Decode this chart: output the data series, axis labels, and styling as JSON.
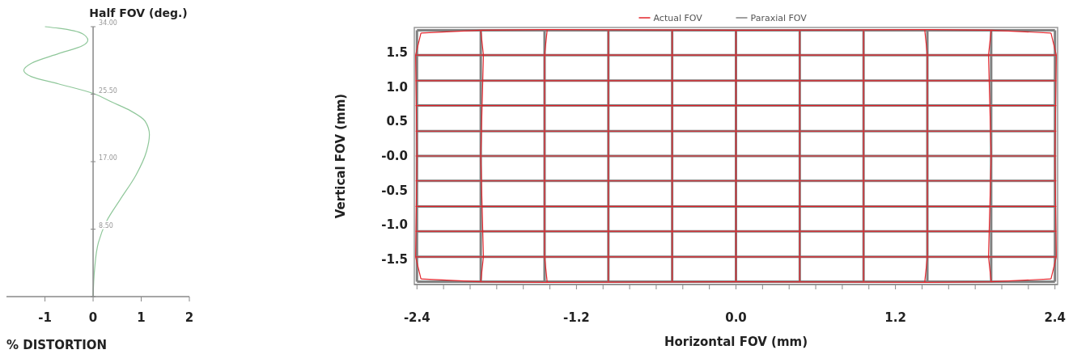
{
  "chart_data": [
    {
      "type": "line",
      "ylabel": "Half FOV (deg.)",
      "xlabel": "% DISTORTION",
      "xlim": [
        -1.8,
        2
      ],
      "ylim": [
        0,
        34
      ],
      "xticks": [
        -1,
        0,
        1,
        2
      ],
      "yticks": [
        {
          "value": 0,
          "label": null
        },
        {
          "value": 8.5,
          "label": "8.50"
        },
        {
          "value": 17,
          "label": "17.00"
        },
        {
          "value": 25.5,
          "label": "25.50"
        },
        {
          "value": 34,
          "label": "34.00"
        }
      ],
      "series": [
        {
          "color": "#8fc79a",
          "x": [
            0,
            0.03,
            0.11,
            0.28,
            0.56,
            0.89,
            1.11,
            1.17,
            1.08,
            0.78,
            0.39,
            0,
            -0.72,
            -1.28,
            -1.44,
            -1.28,
            -0.72,
            -0.22,
            -0.11,
            -0.22,
            -0.72,
            -1.0
          ],
          "values": [
            0,
            3.4,
            6.8,
            9.5,
            12.2,
            15.3,
            18.3,
            20.4,
            22.1,
            23.4,
            24.5,
            25.6,
            26.8,
            27.7,
            28.5,
            29.4,
            30.6,
            31.6,
            32.3,
            33.1,
            33.8,
            34
          ]
        }
      ]
    },
    {
      "type": "line",
      "xlabel": "Horizontal FOV (mm)",
      "ylabel": "Vertical FOV (mm)",
      "xlim": [
        -2.42,
        2.42
      ],
      "ylim": [
        -1.86,
        1.86
      ],
      "xticks": [
        {
          "value": -2.4,
          "label": "-2.4"
        },
        {
          "value": -2.2,
          "label": null
        },
        {
          "value": -2,
          "label": null
        },
        {
          "value": -1.8,
          "label": null
        },
        {
          "value": -1.6,
          "label": null
        },
        {
          "value": -1.4,
          "label": null
        },
        {
          "value": -1.2,
          "label": "-1.2"
        },
        {
          "value": -1,
          "label": null
        },
        {
          "value": -0.8,
          "label": null
        },
        {
          "value": -0.6,
          "label": null
        },
        {
          "value": -0.4,
          "label": null
        },
        {
          "value": -0.2,
          "label": null
        },
        {
          "value": 0,
          "label": "0.0"
        },
        {
          "value": 0.2,
          "label": null
        },
        {
          "value": 0.4,
          "label": null
        },
        {
          "value": 0.6,
          "label": null
        },
        {
          "value": 0.8,
          "label": null
        },
        {
          "value": 1,
          "label": null
        },
        {
          "value": 1.2,
          "label": "1.2"
        },
        {
          "value": 1.4,
          "label": null
        },
        {
          "value": 1.6,
          "label": null
        },
        {
          "value": 1.8,
          "label": null
        },
        {
          "value": 2,
          "label": null
        },
        {
          "value": 2.2,
          "label": null
        },
        {
          "value": 2.4,
          "label": "2.4"
        }
      ],
      "yticks": [
        {
          "value": -1.5,
          "label": "-1.5"
        },
        {
          "value": -1,
          "label": "-1.0"
        },
        {
          "value": -0.5,
          "label": "-0.5"
        },
        {
          "value": 0,
          "label": "-0.0"
        },
        {
          "value": 0.5,
          "label": "0.5"
        },
        {
          "value": 1,
          "label": "1.0"
        },
        {
          "value": 1.5,
          "label": "1.5"
        }
      ],
      "legend": "top",
      "series": [
        {
          "name": "Actual FOV",
          "color": "#e3242b",
          "x": [
            -2.37,
            -1.92,
            -1.44,
            0,
            1.44,
            1.92,
            2.37
          ],
          "values": [
            1.78,
            1.82,
            1.83,
            1.82,
            1.83,
            1.82,
            1.78
          ]
        },
        {
          "color": "#e3242b",
          "x": [
            -2.41,
            0,
            2.41
          ],
          "values": [
            1.46,
            1.46,
            1.46
          ]
        },
        {
          "color": "#e3242b",
          "x": [
            -2.41,
            0,
            2.41
          ],
          "values": [
            1.09,
            1.09,
            1.09
          ]
        },
        {
          "color": "#e3242b",
          "x": [
            -2.41,
            0,
            2.41
          ],
          "values": [
            0.73,
            0.73,
            0.73
          ]
        },
        {
          "color": "#e3242b",
          "x": [
            -2.41,
            0,
            2.41
          ],
          "values": [
            0.36,
            0.36,
            0.36
          ]
        },
        {
          "color": "#e3242b",
          "x": [
            -2.41,
            0,
            2.41
          ],
          "values": [
            0,
            0,
            0
          ]
        },
        {
          "color": "#e3242b",
          "x": [
            -2.41,
            0,
            2.41
          ],
          "values": [
            -0.36,
            -0.36,
            -0.36
          ]
        },
        {
          "color": "#e3242b",
          "x": [
            -2.41,
            0,
            2.41
          ],
          "values": [
            -0.73,
            -0.73,
            -0.73
          ]
        },
        {
          "color": "#e3242b",
          "x": [
            -2.41,
            0,
            2.41
          ],
          "values": [
            -1.09,
            -1.09,
            -1.09
          ]
        },
        {
          "color": "#e3242b",
          "x": [
            -2.41,
            0,
            2.41
          ],
          "values": [
            -1.46,
            -1.46,
            -1.46
          ]
        },
        {
          "color": "#e3242b",
          "x": [
            -2.37,
            -1.92,
            -1.44,
            0,
            1.44,
            1.92,
            2.37
          ],
          "values": [
            -1.78,
            -1.82,
            -1.83,
            -1.82,
            -1.83,
            -1.82,
            -1.78
          ]
        },
        {
          "color": "#e3242b",
          "x": [
            -2.37,
            -2.41,
            -2.4,
            -2.41,
            -2.37
          ],
          "values": [
            -1.78,
            -1.46,
            0,
            1.46,
            1.78
          ]
        },
        {
          "color": "#e3242b",
          "x": [
            -1.92,
            -1.9,
            -1.92,
            -1.9,
            -1.92
          ],
          "values": [
            -1.82,
            -1.46,
            0,
            1.46,
            1.82
          ]
        },
        {
          "color": "#e3242b",
          "x": [
            -1.42,
            -1.44,
            -1.44,
            -1.44,
            -1.42
          ],
          "values": [
            -1.83,
            -1.46,
            0,
            1.46,
            1.83
          ]
        },
        {
          "color": "#e3242b",
          "x": [
            -0.96,
            -0.96
          ],
          "values": [
            -1.82,
            1.82
          ]
        },
        {
          "color": "#e3242b",
          "x": [
            -0.48,
            -0.48
          ],
          "values": [
            -1.82,
            1.82
          ]
        },
        {
          "color": "#e3242b",
          "x": [
            0,
            0
          ],
          "values": [
            -1.82,
            1.82
          ]
        },
        {
          "color": "#e3242b",
          "x": [
            0.48,
            0.48
          ],
          "values": [
            -1.82,
            1.82
          ]
        },
        {
          "color": "#e3242b",
          "x": [
            0.96,
            0.96
          ],
          "values": [
            -1.82,
            1.82
          ]
        },
        {
          "color": "#e3242b",
          "x": [
            1.42,
            1.44,
            1.44,
            1.44,
            1.42
          ],
          "values": [
            -1.83,
            -1.46,
            0,
            1.46,
            1.83
          ]
        },
        {
          "color": "#e3242b",
          "x": [
            1.92,
            1.9,
            1.92,
            1.9,
            1.92
          ],
          "values": [
            -1.82,
            -1.46,
            0,
            1.46,
            1.82
          ]
        },
        {
          "color": "#e3242b",
          "x": [
            2.37,
            2.41,
            2.4,
            2.41,
            2.37
          ],
          "values": [
            -1.78,
            -1.46,
            0,
            1.46,
            1.78
          ]
        },
        {
          "name": "Paraxial FOV",
          "color": "#808080",
          "x": [
            -2.4,
            2.4
          ],
          "values": [
            1.82,
            1.82
          ]
        },
        {
          "color": "#808080",
          "x": [
            -2.4,
            2.4
          ],
          "values": [
            1.46,
            1.46
          ]
        },
        {
          "color": "#808080",
          "x": [
            -2.4,
            2.4
          ],
          "values": [
            1.09,
            1.09
          ]
        },
        {
          "color": "#808080",
          "x": [
            -2.4,
            2.4
          ],
          "values": [
            0.73,
            0.73
          ]
        },
        {
          "color": "#808080",
          "x": [
            -2.4,
            2.4
          ],
          "values": [
            0.36,
            0.36
          ]
        },
        {
          "color": "#808080",
          "x": [
            -2.4,
            2.4
          ],
          "values": [
            0,
            0
          ]
        },
        {
          "color": "#808080",
          "x": [
            -2.4,
            2.4
          ],
          "values": [
            -0.36,
            -0.36
          ]
        },
        {
          "color": "#808080",
          "x": [
            -2.4,
            2.4
          ],
          "values": [
            -0.73,
            -0.73
          ]
        },
        {
          "color": "#808080",
          "x": [
            -2.4,
            2.4
          ],
          "values": [
            -1.09,
            -1.09
          ]
        },
        {
          "color": "#808080",
          "x": [
            -2.4,
            2.4
          ],
          "values": [
            -1.46,
            -1.46
          ]
        },
        {
          "color": "#808080",
          "x": [
            -2.4,
            2.4
          ],
          "values": [
            -1.82,
            -1.82
          ]
        },
        {
          "color": "#808080",
          "x": [
            -2.4,
            -2.4
          ],
          "values": [
            -1.82,
            1.82
          ]
        },
        {
          "color": "#808080",
          "x": [
            -1.92,
            -1.92
          ],
          "values": [
            -1.82,
            1.82
          ]
        },
        {
          "color": "#808080",
          "x": [
            -1.44,
            -1.44
          ],
          "values": [
            -1.82,
            1.82
          ]
        },
        {
          "color": "#808080",
          "x": [
            -0.96,
            -0.96
          ],
          "values": [
            -1.82,
            1.82
          ]
        },
        {
          "color": "#808080",
          "x": [
            -0.48,
            -0.48
          ],
          "values": [
            -1.82,
            1.82
          ]
        },
        {
          "color": "#808080",
          "x": [
            0,
            0
          ],
          "values": [
            -1.82,
            1.82
          ]
        },
        {
          "color": "#808080",
          "x": [
            0.48,
            0.48
          ],
          "values": [
            -1.82,
            1.82
          ]
        },
        {
          "color": "#808080",
          "x": [
            0.96,
            0.96
          ],
          "values": [
            -1.82,
            1.82
          ]
        },
        {
          "color": "#808080",
          "x": [
            1.44,
            1.44
          ],
          "values": [
            -1.82,
            1.82
          ]
        },
        {
          "color": "#808080",
          "x": [
            1.92,
            1.92
          ],
          "values": [
            -1.82,
            1.82
          ]
        },
        {
          "color": "#808080",
          "x": [
            2.4,
            2.4
          ],
          "values": [
            -1.82,
            1.82
          ]
        }
      ]
    }
  ]
}
